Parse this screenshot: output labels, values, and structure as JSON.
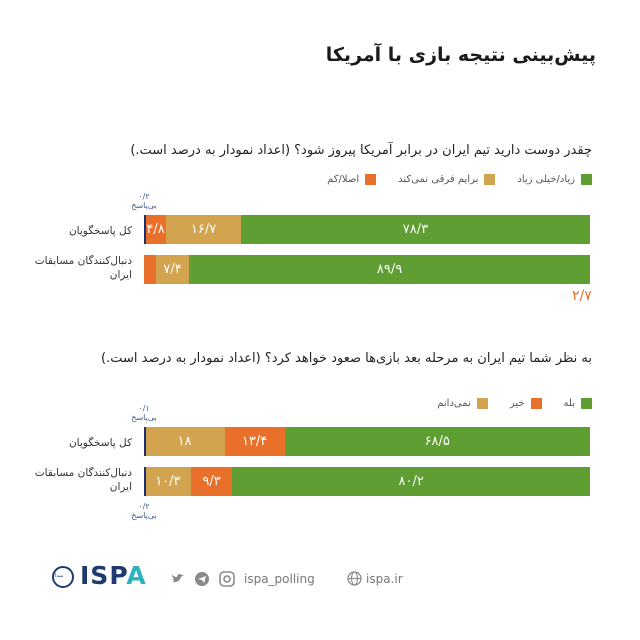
{
  "title": "پیش‌بینی نتیجه بازی با آمریکا",
  "colors": {
    "green": "#5e9e32",
    "gold": "#d3a450",
    "orange": "#e8702a",
    "navy": "#1f2f6b",
    "teal": "#2bb3c0"
  },
  "chart_data": [
    {
      "type": "bar",
      "stacked": true,
      "orientation": "horizontal",
      "title": "چقدر دوست دارید تیم ایران در برابر آمریکا پیروز شود؟ (اعداد نمودار به درصد است.)",
      "legend": [
        "زیاد/خیلی زیاد",
        "برایم فرقی نمی‌کند",
        "اصلا/کم"
      ],
      "categories": [
        "کل پاسخگویان",
        "دنبال‌کنندگان مسابقات ایران"
      ],
      "series": [
        {
          "name": "زیاد/خیلی زیاد",
          "values": [
            78.3,
            89.9
          ],
          "labels": [
            "۷۸/۳",
            "۸۹/۹"
          ],
          "color": "#5e9e32"
        },
        {
          "name": "برایم فرقی نمی‌کند",
          "values": [
            16.7,
            7.4
          ],
          "labels": [
            "۱۶/۷",
            "۷/۴"
          ],
          "color": "#d3a450"
        },
        {
          "name": "اصلا/کم",
          "values": [
            4.8,
            2.7
          ],
          "labels": [
            "۴/۸",
            "۲/۷"
          ],
          "color": "#e8702a"
        },
        {
          "name": "بی‌پاسخ",
          "values": [
            0.2,
            0
          ],
          "labels": [
            "۰/۲",
            ""
          ],
          "color": "#1f2f6b"
        }
      ]
    },
    {
      "type": "bar",
      "stacked": true,
      "orientation": "horizontal",
      "title": "به نظر شما تیم ایران به مرحله بعد بازی‌ها صعود خواهد کرد؟ (اعداد نمودار به درصد است.)",
      "legend": [
        "بله",
        "خیر",
        "نمی‌دانم"
      ],
      "categories": [
        "کل پاسخگویان",
        "دنبال‌کنندگان مسابقات ایران"
      ],
      "series": [
        {
          "name": "بله",
          "values": [
            68.5,
            80.2
          ],
          "labels": [
            "۶۸/۵",
            "۸۰/۲"
          ],
          "color": "#5e9e32"
        },
        {
          "name": "خیر",
          "values": [
            13.4,
            9.3
          ],
          "labels": [
            "۱۳/۴",
            "۹/۳"
          ],
          "color": "#e8702a"
        },
        {
          "name": "نمی‌دانم",
          "values": [
            18,
            10.3
          ],
          "labels": [
            "۱۸",
            "۱۰/۳"
          ],
          "color": "#d3a450"
        },
        {
          "name": "بی‌پاسخ",
          "values": [
            0.1,
            0.2
          ],
          "labels": [
            "۰/۱",
            "۰/۲"
          ],
          "color": "#1f2f6b"
        }
      ]
    }
  ],
  "no_response_label": "بی‌پاسخ",
  "footer": {
    "logo_small": "میدا",
    "brand_prefix": "IS",
    "brand_p": "P",
    "brand_suffix": "A",
    "handle": "ispa_polling",
    "website": "ispa.ir",
    "icons": [
      "twitter-icon",
      "telegram-icon",
      "instagram-icon",
      "globe-icon"
    ]
  }
}
